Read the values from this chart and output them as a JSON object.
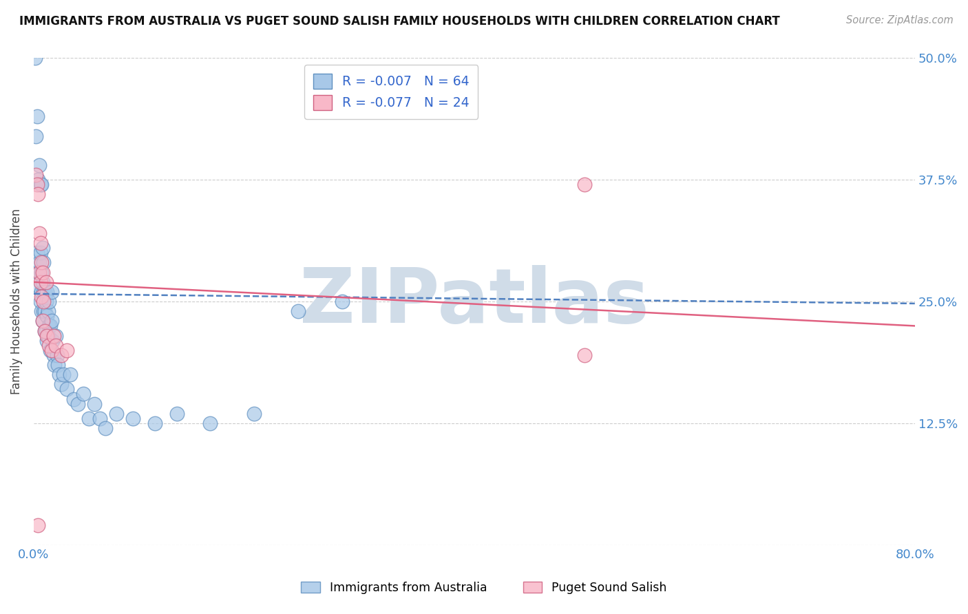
{
  "title": "IMMIGRANTS FROM AUSTRALIA VS PUGET SOUND SALISH FAMILY HOUSEHOLDS WITH CHILDREN CORRELATION CHART",
  "source": "Source: ZipAtlas.com",
  "ylabel": "Family Households with Children",
  "xlim": [
    0.0,
    0.8
  ],
  "ylim": [
    0.0,
    0.5
  ],
  "yticks": [
    0.0,
    0.125,
    0.25,
    0.375,
    0.5
  ],
  "ytick_labels": [
    "",
    "12.5%",
    "25.0%",
    "37.5%",
    "50.0%"
  ],
  "xtick_labels": [
    "0.0%",
    "80.0%"
  ],
  "xtick_vals": [
    0.0,
    0.8
  ],
  "series1_color": "#a8c8e8",
  "series1_edge": "#6090c0",
  "series2_color": "#f8b8c8",
  "series2_edge": "#d06080",
  "trend1_color": "#5080c0",
  "trend2_color": "#e06080",
  "watermark": "ZIPatlas",
  "watermark_color": "#d0dce8",
  "background_color": "#ffffff",
  "grid_color": "#cccccc",
  "tick_color": "#4488cc",
  "legend_r_color": "#3366cc",
  "legend_n_color": "#3366cc",
  "bottom_legend": [
    "Immigrants from Australia",
    "Puget Sound Salish"
  ],
  "bottom_legend_colors": [
    "#a8c8e8",
    "#f8b8c8"
  ],
  "bottom_legend_edge": [
    "#6090c0",
    "#d06080"
  ],
  "trend1_x0": 0.0,
  "trend1_y0": 0.258,
  "trend1_x1": 0.8,
  "trend1_y1": 0.248,
  "trend2_x0": 0.0,
  "trend2_y0": 0.27,
  "trend2_x1": 0.8,
  "trend2_y1": 0.225,
  "s1_x": [
    0.0015,
    0.002,
    0.003,
    0.003,
    0.004,
    0.004,
    0.005,
    0.005,
    0.005,
    0.006,
    0.006,
    0.006,
    0.007,
    0.007,
    0.007,
    0.007,
    0.008,
    0.008,
    0.008,
    0.009,
    0.009,
    0.009,
    0.01,
    0.01,
    0.01,
    0.011,
    0.011,
    0.012,
    0.012,
    0.012,
    0.013,
    0.013,
    0.014,
    0.014,
    0.015,
    0.015,
    0.016,
    0.016,
    0.017,
    0.018,
    0.019,
    0.02,
    0.021,
    0.022,
    0.023,
    0.025,
    0.027,
    0.03,
    0.033,
    0.036,
    0.04,
    0.045,
    0.05,
    0.055,
    0.06,
    0.065,
    0.075,
    0.09,
    0.11,
    0.13,
    0.16,
    0.2,
    0.24,
    0.28
  ],
  "s1_y": [
    0.5,
    0.42,
    0.44,
    0.3,
    0.375,
    0.28,
    0.39,
    0.29,
    0.265,
    0.37,
    0.3,
    0.25,
    0.37,
    0.28,
    0.26,
    0.24,
    0.305,
    0.27,
    0.23,
    0.29,
    0.26,
    0.24,
    0.26,
    0.24,
    0.22,
    0.25,
    0.22,
    0.26,
    0.235,
    0.21,
    0.24,
    0.215,
    0.25,
    0.225,
    0.225,
    0.2,
    0.26,
    0.23,
    0.21,
    0.195,
    0.185,
    0.215,
    0.195,
    0.185,
    0.175,
    0.165,
    0.175,
    0.16,
    0.175,
    0.15,
    0.145,
    0.155,
    0.13,
    0.145,
    0.13,
    0.12,
    0.135,
    0.13,
    0.125,
    0.135,
    0.125,
    0.135,
    0.24,
    0.25
  ],
  "s2_x": [
    0.002,
    0.003,
    0.004,
    0.005,
    0.005,
    0.006,
    0.006,
    0.007,
    0.007,
    0.008,
    0.008,
    0.009,
    0.01,
    0.011,
    0.012,
    0.014,
    0.016,
    0.018,
    0.02,
    0.025,
    0.004,
    0.5,
    0.5,
    0.03
  ],
  "s2_y": [
    0.38,
    0.37,
    0.36,
    0.32,
    0.28,
    0.31,
    0.27,
    0.29,
    0.255,
    0.28,
    0.23,
    0.25,
    0.22,
    0.27,
    0.215,
    0.205,
    0.2,
    0.215,
    0.205,
    0.195,
    0.02,
    0.37,
    0.195,
    0.2
  ]
}
